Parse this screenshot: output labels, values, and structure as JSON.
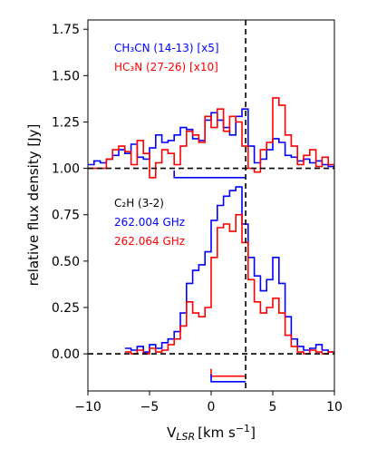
{
  "chart_data": {
    "type": "line",
    "xlabel": "V",
    "xlabel_sub": "LSR",
    "xlabel_unit": "[km s",
    "xlabel_exp": "−1",
    "xlabel_close": "]",
    "ylabel": "relative flux density [Jy]",
    "xlim": [
      -10,
      10
    ],
    "ylim": [
      -0.2,
      1.8
    ],
    "xticks": [
      -10,
      -5,
      0,
      5,
      10
    ],
    "yticks": [
      0.0,
      0.25,
      0.5,
      0.75,
      1.0,
      1.25,
      1.5,
      1.75
    ],
    "xtick_labels": [
      "−10",
      "−5",
      "0",
      "5",
      "10"
    ],
    "ytick_labels": [
      "0.00",
      "0.25",
      "0.50",
      "0.75",
      "1.00",
      "1.25",
      "1.50",
      "1.75"
    ],
    "baselines": [
      0.0,
      1.0
    ],
    "vline_x": 2.8,
    "legend_top": [
      {
        "name": "CH₃CN (14-13) [x5]",
        "color": "#0000ff"
      },
      {
        "name": "HC₃N (27-26) [x10]",
        "color": "#ff0000"
      }
    ],
    "legend_bottom": [
      {
        "name": "C₂H (3-2)",
        "color": "#000000"
      },
      {
        "name": "262.004 GHz",
        "color": "#0000ff"
      },
      {
        "name": "262.064 GHz",
        "color": "#ff0000"
      }
    ],
    "series": [
      {
        "color": "#0000ff",
        "x": [
          -10,
          -9.5,
          -9,
          -8.5,
          -8,
          -7.5,
          -7,
          -6.5,
          -6,
          -5.5,
          -5,
          -4.5,
          -4,
          -3.5,
          -3,
          -2.5,
          -2,
          -1.5,
          -1,
          -0.5,
          0,
          0.5,
          1,
          1.5,
          2,
          2.5,
          3,
          3.5,
          4,
          4.5,
          5,
          5.5,
          6,
          6.5,
          7,
          7.5,
          8,
          8.5,
          9,
          9.5
        ],
        "y": [
          1.02,
          1.04,
          1.03,
          1.05,
          1.07,
          1.1,
          1.08,
          1.13,
          1.06,
          1.05,
          1.11,
          1.18,
          1.14,
          1.15,
          1.18,
          1.22,
          1.21,
          1.16,
          1.15,
          1.26,
          1.3,
          1.26,
          1.22,
          1.18,
          1.28,
          1.32,
          1.12,
          1.03,
          1.05,
          1.1,
          1.16,
          1.14,
          1.07,
          1.06,
          1.04,
          1.05,
          1.03,
          1.04,
          1.02,
          1.01
        ]
      },
      {
        "color": "#ff0000",
        "x": [
          -10,
          -9.5,
          -9,
          -8.5,
          -8,
          -7.5,
          -7,
          -6.5,
          -6,
          -5.5,
          -5,
          -4.5,
          -4,
          -3.5,
          -3,
          -2.5,
          -2,
          -1.5,
          -1,
          -0.5,
          0,
          0.5,
          1,
          1.5,
          2,
          2.5,
          3,
          3.5,
          4,
          4.5,
          5,
          5.5,
          6,
          6.5,
          7,
          7.5,
          8,
          8.5,
          9,
          9.5
        ],
        "y": [
          1.0,
          1.0,
          1.0,
          1.05,
          1.1,
          1.12,
          1.09,
          1.02,
          1.15,
          1.08,
          0.95,
          1.03,
          1.1,
          1.08,
          1.02,
          1.12,
          1.2,
          1.18,
          1.14,
          1.28,
          1.22,
          1.32,
          1.2,
          1.28,
          1.25,
          1.12,
          1.0,
          0.98,
          1.1,
          1.14,
          1.38,
          1.34,
          1.18,
          1.12,
          1.02,
          1.07,
          1.1,
          1.01,
          1.06,
          1.02
        ]
      },
      {
        "color": "#0000ff",
        "x": [
          -7.0,
          -6.5,
          -6.0,
          -5.5,
          -5.0,
          -4.5,
          -4.0,
          -3.5,
          -3.0,
          -2.5,
          -2.0,
          -1.5,
          -1.0,
          -0.5,
          0.0,
          0.5,
          1.0,
          1.5,
          2.0,
          2.5,
          3.0,
          3.5,
          4.0,
          4.5,
          5.0,
          5.5,
          6.0,
          6.5,
          7.0,
          7.5,
          8.0,
          8.5,
          9.0,
          9.5
        ],
        "y": [
          0.03,
          0.02,
          0.04,
          0.01,
          0.05,
          0.03,
          0.06,
          0.08,
          0.12,
          0.22,
          0.38,
          0.45,
          0.48,
          0.55,
          0.72,
          0.8,
          0.85,
          0.88,
          0.9,
          0.7,
          0.52,
          0.42,
          0.34,
          0.4,
          0.52,
          0.38,
          0.2,
          0.08,
          0.04,
          0.02,
          0.03,
          0.05,
          0.02,
          0.01
        ]
      },
      {
        "color": "#ff0000",
        "x": [
          -7.0,
          -6.5,
          -6.0,
          -5.5,
          -5.0,
          -4.5,
          -4.0,
          -3.5,
          -3.0,
          -2.5,
          -2.0,
          -1.5,
          -1.0,
          -0.5,
          0.0,
          0.5,
          1.0,
          1.5,
          2.0,
          2.5,
          3.0,
          3.5,
          4.0,
          4.5,
          5.0,
          5.5,
          6.0,
          6.5,
          7.0,
          7.5,
          8.0,
          8.5,
          9.0,
          9.5
        ],
        "y": [
          0.01,
          0.0,
          0.02,
          0.0,
          0.03,
          0.01,
          0.02,
          0.05,
          0.08,
          0.15,
          0.28,
          0.22,
          0.2,
          0.25,
          0.52,
          0.68,
          0.7,
          0.66,
          0.75,
          0.6,
          0.4,
          0.28,
          0.22,
          0.25,
          0.3,
          0.22,
          0.1,
          0.04,
          0.01,
          0.0,
          0.02,
          0.01,
          0.0,
          0.01
        ]
      }
    ],
    "markers": [
      {
        "color": "#0000ff",
        "x": [
          -3.0,
          2.8
        ],
        "y": 0.95
      },
      {
        "color": "#ff0000",
        "x": [
          0.0,
          2.8
        ],
        "y": -0.12
      },
      {
        "color": "#0000ff",
        "x": [
          0.0,
          2.8
        ],
        "y": -0.15
      }
    ]
  }
}
